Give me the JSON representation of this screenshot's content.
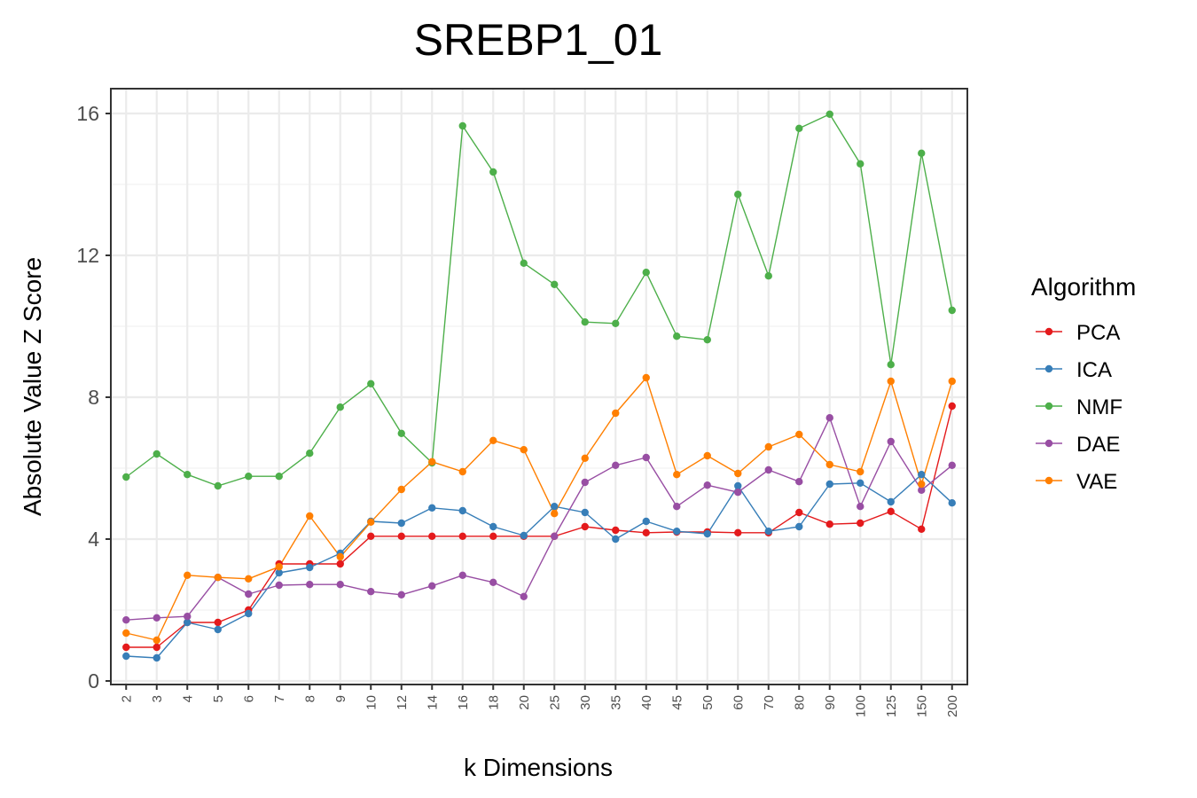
{
  "chart_data": {
    "type": "line",
    "title": "SREBP1_01",
    "xlabel": "k Dimensions",
    "ylabel": "Absolute Value Z Score",
    "ylim": [
      0,
      16.7
    ],
    "yticks": [
      0,
      4,
      8,
      12,
      16
    ],
    "grid": true,
    "legend": {
      "title": "Algorithm",
      "position": "right"
    },
    "categories": [
      "2",
      "3",
      "4",
      "5",
      "6",
      "7",
      "8",
      "9",
      "10",
      "12",
      "14",
      "16",
      "18",
      "20",
      "25",
      "30",
      "35",
      "40",
      "45",
      "50",
      "60",
      "70",
      "80",
      "90",
      "100",
      "125",
      "150",
      "200"
    ],
    "series": [
      {
        "name": "PCA",
        "color": "#e41a1c",
        "values": [
          0.95,
          0.95,
          1.65,
          1.65,
          2.0,
          3.3,
          3.3,
          3.3,
          4.08,
          4.08,
          4.08,
          4.08,
          4.08,
          4.08,
          4.08,
          4.35,
          4.25,
          4.18,
          4.2,
          4.2,
          4.18,
          4.18,
          4.75,
          4.42,
          4.45,
          4.78,
          4.28,
          7.75
        ]
      },
      {
        "name": "ICA",
        "color": "#377eb8",
        "values": [
          0.7,
          0.65,
          1.65,
          1.45,
          1.9,
          3.05,
          3.2,
          3.6,
          4.5,
          4.45,
          4.88,
          4.8,
          4.35,
          4.1,
          4.92,
          4.75,
          4.0,
          4.5,
          4.22,
          4.15,
          5.5,
          4.22,
          4.35,
          5.55,
          5.58,
          5.05,
          5.82,
          5.02
        ]
      },
      {
        "name": "NMF",
        "color": "#4daf4a",
        "values": [
          5.75,
          6.4,
          5.82,
          5.5,
          5.77,
          5.77,
          6.42,
          7.72,
          8.38,
          6.98,
          6.15,
          15.65,
          14.35,
          11.78,
          11.18,
          10.12,
          10.08,
          11.52,
          9.72,
          9.62,
          13.72,
          11.42,
          15.58,
          15.98,
          14.58,
          8.92,
          14.88,
          10.45
        ]
      },
      {
        "name": "DAE",
        "color": "#984ea3",
        "values": [
          1.72,
          1.78,
          1.82,
          2.92,
          2.45,
          2.7,
          2.72,
          2.72,
          2.52,
          2.43,
          2.68,
          2.98,
          2.78,
          2.38,
          4.08,
          5.6,
          6.08,
          6.3,
          4.92,
          5.52,
          5.32,
          5.95,
          5.62,
          7.42,
          4.92,
          6.75,
          5.38,
          6.08
        ]
      },
      {
        "name": "VAE",
        "color": "#ff7f00",
        "values": [
          1.35,
          1.15,
          2.98,
          2.92,
          2.88,
          3.22,
          4.65,
          3.5,
          4.48,
          5.4,
          6.18,
          5.9,
          6.78,
          6.52,
          4.72,
          6.28,
          7.55,
          8.55,
          5.82,
          6.35,
          5.85,
          6.6,
          6.95,
          6.1,
          5.9,
          8.45,
          5.55,
          8.45
        ]
      }
    ]
  }
}
